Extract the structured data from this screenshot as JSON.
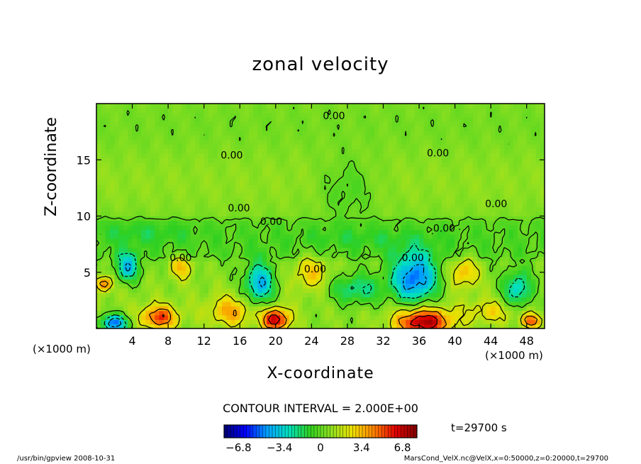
{
  "chart_data": {
    "type": "heatmap",
    "title": "zonal velocity",
    "xlabel": "X-coordinate",
    "ylabel": "Z-coordinate",
    "x_unit_left": "(×1000 m)",
    "x_unit_right": "(×1000 m)",
    "xlim": [
      0,
      50
    ],
    "ylim": [
      0,
      20
    ],
    "xticks": [
      4,
      8,
      12,
      16,
      20,
      24,
      28,
      32,
      36,
      40,
      44,
      48
    ],
    "yticks": [
      5,
      10,
      15
    ],
    "contour_interval_text": "CONTOUR INTERVAL = 2.000E+00",
    "contour_labels": [
      "0.00",
      "0.00",
      "0.00",
      "0.00",
      "0.00",
      "0.00",
      "0.00",
      "0.00",
      "0.00",
      "0.00"
    ],
    "colorbar": {
      "range": [
        -8,
        8
      ],
      "ticks": [
        "−6.8",
        "−3.4",
        "0",
        "3.4",
        "6.8"
      ],
      "colors": [
        "#000070",
        "#0000ff",
        "#00a0ff",
        "#00e0c0",
        "#30d020",
        "#90e020",
        "#f0e000",
        "#ff8000",
        "#e00000",
        "#800000"
      ]
    },
    "time_label": "t=29700 s",
    "footer_left": "/usr/bin/gpview  2008-10-31",
    "footer_right": "MarsCond_VelX.nc@VelX,x=0:50000,z=0:20000,t=29700",
    "features": [
      {
        "x": 3.5,
        "z": 5.5,
        "rx": 1.3,
        "rz": 1.2,
        "value": -4.5
      },
      {
        "x": 9.5,
        "z": 5.5,
        "rx": 1.2,
        "rz": 1.0,
        "value": 3.0
      },
      {
        "x": 18.2,
        "z": 4.0,
        "rx": 1.6,
        "rz": 1.8,
        "value": -5.0
      },
      {
        "x": 20.0,
        "z": 0.8,
        "rx": 1.5,
        "rz": 1.0,
        "value": 6.5
      },
      {
        "x": 15.0,
        "z": 1.5,
        "rx": 2.5,
        "rz": 1.3,
        "value": 3.0
      },
      {
        "x": 7.0,
        "z": 1.0,
        "rx": 2.0,
        "rz": 1.0,
        "value": 5.0
      },
      {
        "x": 2.0,
        "z": 0.5,
        "rx": 1.5,
        "rz": 0.7,
        "value": -6.0
      },
      {
        "x": 35.5,
        "z": 4.5,
        "rx": 2.5,
        "rz": 2.2,
        "value": -6.0
      },
      {
        "x": 36.5,
        "z": 0.6,
        "rx": 3.0,
        "rz": 1.2,
        "value": 7.0
      },
      {
        "x": 29.0,
        "z": 3.5,
        "rx": 3.0,
        "rz": 1.3,
        "value": -3.0
      },
      {
        "x": 41.0,
        "z": 5.0,
        "rx": 1.5,
        "rz": 1.3,
        "value": 3.0
      },
      {
        "x": 47.0,
        "z": 3.5,
        "rx": 1.6,
        "rz": 1.6,
        "value": -4.0
      },
      {
        "x": 48.5,
        "z": 0.7,
        "rx": 1.0,
        "rz": 0.6,
        "value": 5.0
      },
      {
        "x": 24.0,
        "z": 5.0,
        "rx": 2.0,
        "rz": 1.5,
        "value": 2.5
      },
      {
        "x": 0.8,
        "z": 4.0,
        "rx": 0.8,
        "rz": 0.6,
        "value": 5.0
      },
      {
        "x": 44.0,
        "z": 1.5,
        "rx": 3.0,
        "rz": 1.0,
        "value": 2.0
      },
      {
        "x": 28.0,
        "z": 12.5,
        "rx": 3.0,
        "rz": 2.5,
        "value": -1.2
      },
      {
        "x": 5.0,
        "z": 8.5,
        "rx": 6.0,
        "rz": 1.0,
        "value": -1.0
      },
      {
        "x": 30.0,
        "z": 8.0,
        "rx": 8.0,
        "rz": 0.8,
        "value": -0.8
      }
    ]
  }
}
